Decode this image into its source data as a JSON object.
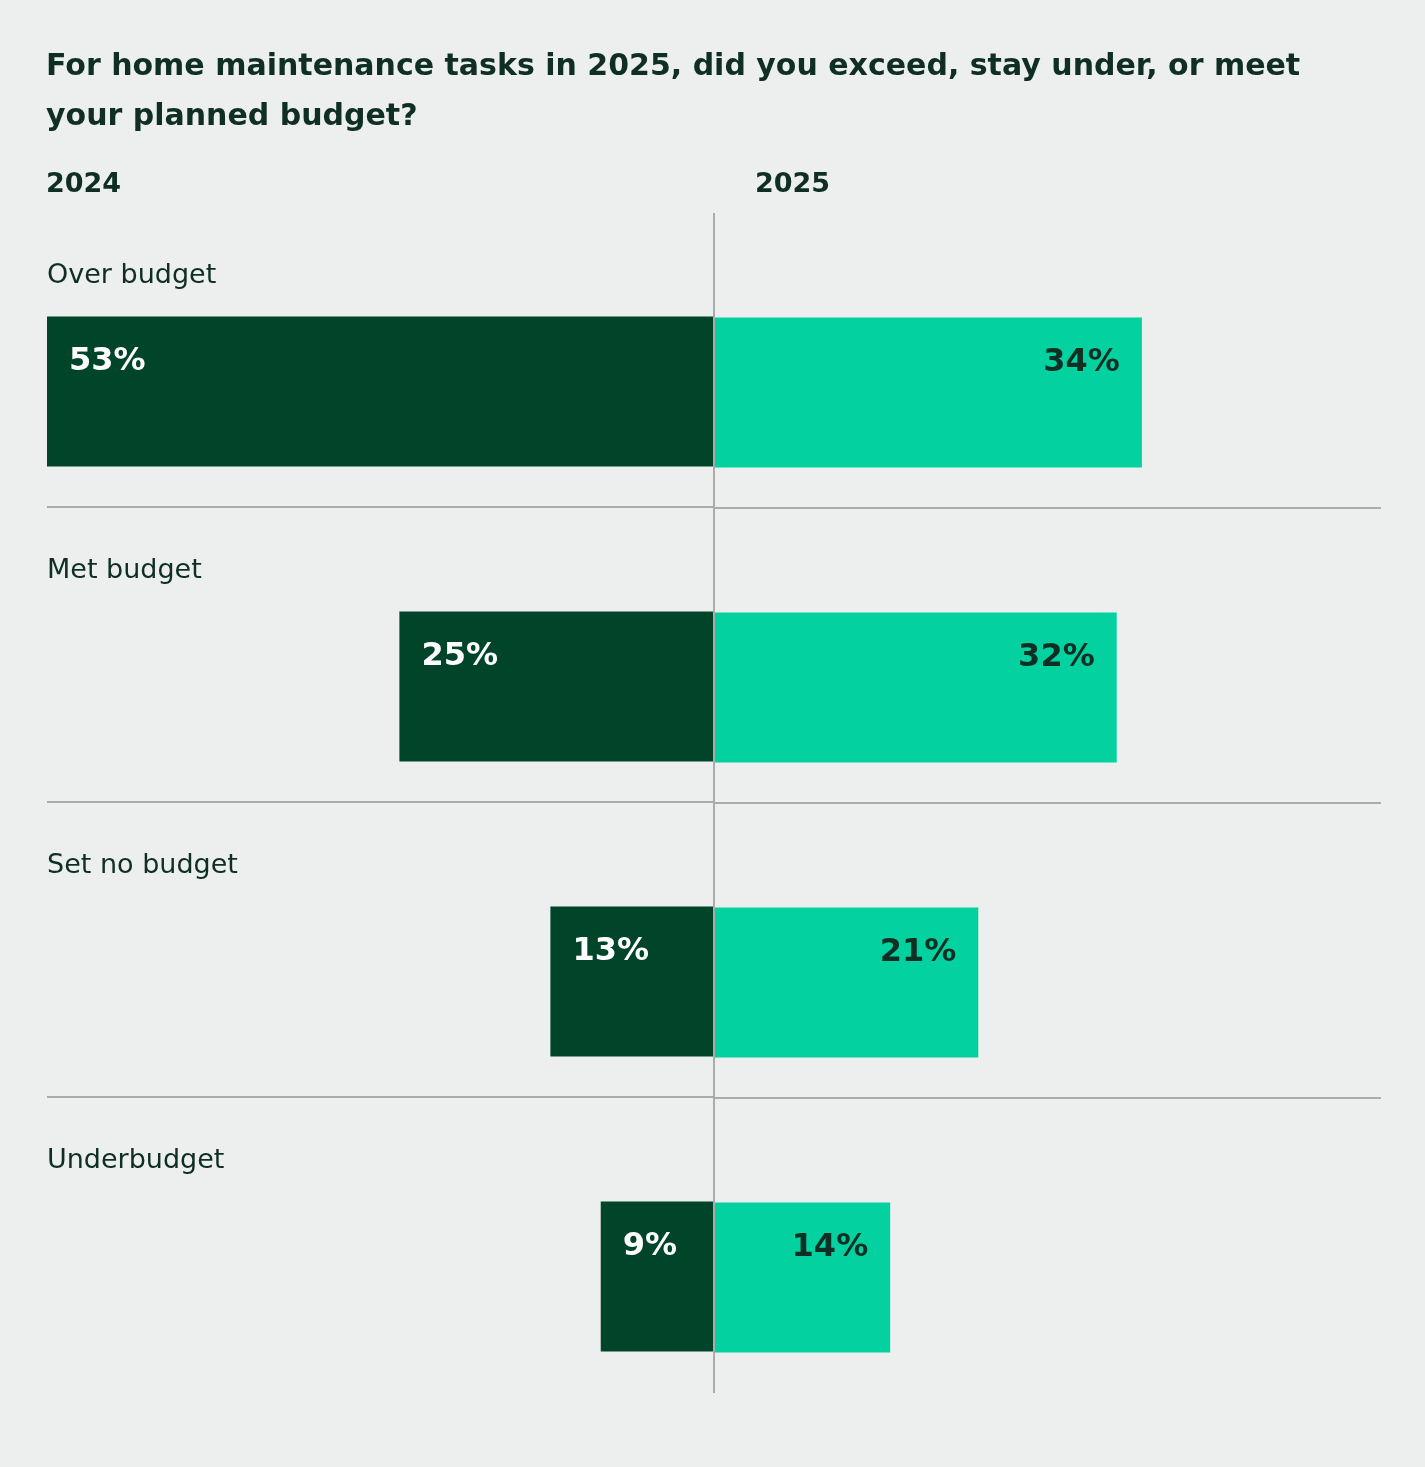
{
  "chart_data": [
    {
      "type": "bar",
      "orientation": "horizontal",
      "title": "For home maintenance tasks in 2025, did you exceed, stay under, or meet your planned budget?",
      "subtitle": "2024",
      "categories": [
        "Over budget",
        "Met budget",
        "Set no budget",
        "Underbudget"
      ],
      "values": [
        53,
        25,
        13,
        9
      ],
      "value_labels": [
        "53%",
        "25%",
        "13%",
        "9%"
      ],
      "color": "#00452a",
      "grid": true
    },
    {
      "type": "bar",
      "orientation": "horizontal",
      "title": "2025",
      "categories": [
        null,
        null,
        null,
        null
      ],
      "values": [
        34,
        32,
        21,
        14
      ],
      "value_labels": [
        "34%",
        "32%",
        "21%",
        "14%"
      ],
      "color": "#03d1a0",
      "grid": true
    }
  ]
}
